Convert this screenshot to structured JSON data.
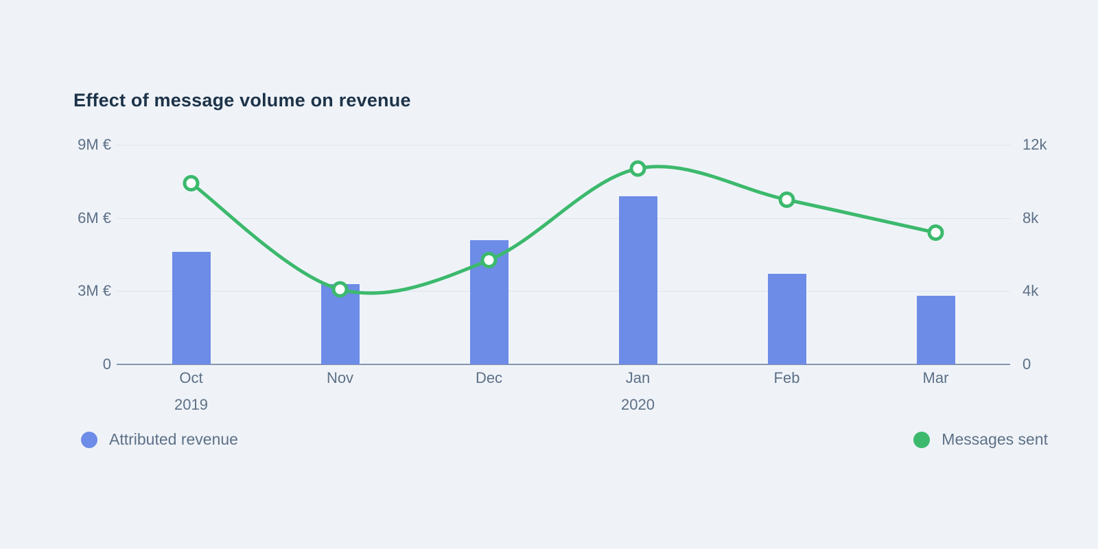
{
  "page": {
    "background": "#eff3f8"
  },
  "chart_data": {
    "type": "combo-bar-line",
    "title": "Effect of message volume on revenue",
    "categories": [
      "Oct",
      "Nov",
      "Dec",
      "Jan",
      "Feb",
      "Mar"
    ],
    "year_markers": [
      {
        "index": 0,
        "label": "2019"
      },
      {
        "index": 3,
        "label": "2020"
      }
    ],
    "series": [
      {
        "name": "Attributed revenue",
        "type": "bar",
        "axis": "left",
        "color": "#6d8ce8",
        "unit": "M €",
        "values": [
          4.6,
          3.3,
          5.1,
          6.9,
          3.7,
          2.8
        ]
      },
      {
        "name": "Messages sent",
        "type": "line",
        "axis": "right",
        "color": "#3cb96d",
        "marker": "circle-white-fill",
        "unit": "k",
        "values": [
          9.9,
          4.1,
          5.7,
          10.7,
          9.0,
          7.2
        ]
      }
    ],
    "left_axis": {
      "min": 0,
      "max": 9,
      "unit": "M €",
      "tick_labels_top_down": [
        "9M €",
        "6M €",
        "3M €",
        "0"
      ]
    },
    "right_axis": {
      "min": 0,
      "max": 12,
      "unit": "k",
      "tick_labels_top_down": [
        "12k",
        "8k",
        "4k",
        "0"
      ]
    },
    "grid": "horizontal",
    "legend_position": "bottom"
  }
}
